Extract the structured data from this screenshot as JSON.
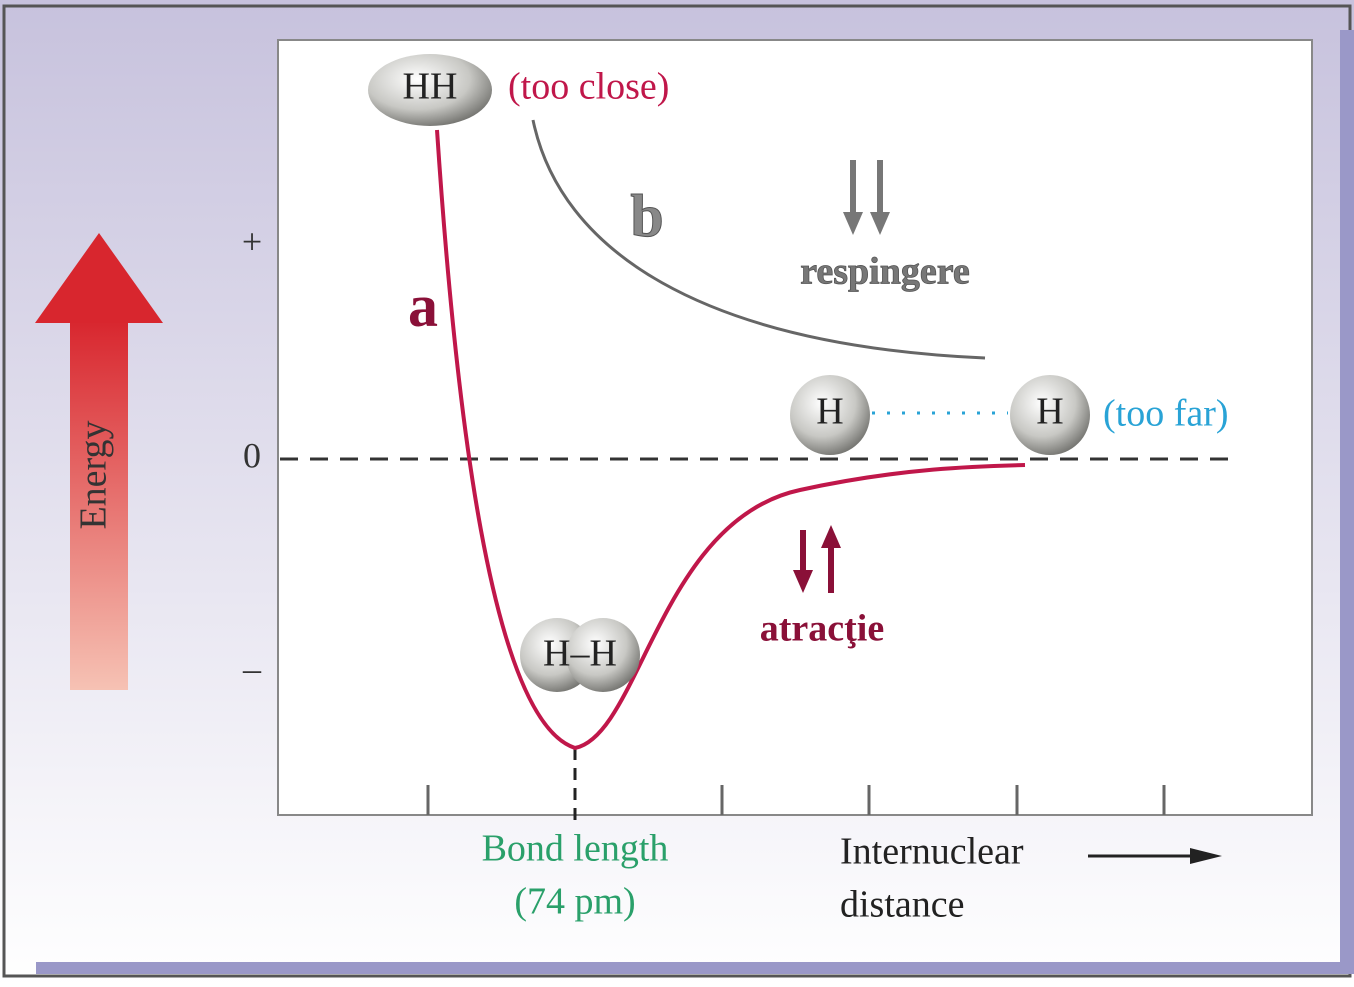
{
  "axis": {
    "y_label": "Energy",
    "y_ticks": [
      "+",
      "0",
      "–"
    ],
    "x_label_line1": "Internuclear",
    "x_label_line2": "distance"
  },
  "bond_length": {
    "line1": "Bond length",
    "line2": "(74 pm)"
  },
  "curves": {
    "a": "a",
    "b": "b"
  },
  "molecules": {
    "too_close": {
      "label": "HH",
      "note": "(too close)"
    },
    "bonded": {
      "label": "H–H"
    },
    "far_left": {
      "label": "H"
    },
    "far_right": {
      "label": "H"
    },
    "far_note": "(too far)"
  },
  "forces": {
    "repulsion": "respingere",
    "attraction": "atracţie"
  }
}
